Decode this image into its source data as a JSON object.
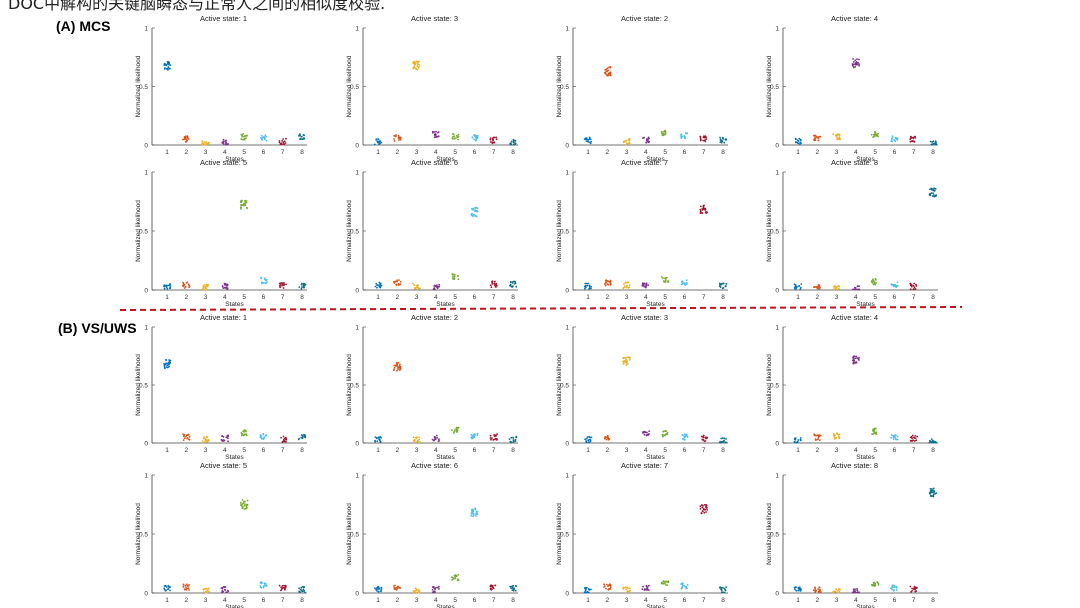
{
  "caption": "DOC中解构的关键脑瞬态与正常人之间的相似度校验.",
  "divider_color": "#c0141c",
  "state_colors": [
    "#0072bd",
    "#d95319",
    "#edb120",
    "#7e2f8e",
    "#77ac30",
    "#4dbeee",
    "#a2142f",
    "#0b6e8f"
  ],
  "chart_data": [
    {
      "panel": "(A) MCS",
      "type": "scatter",
      "xlabel": "States",
      "ylabel": "Normalized likelihood",
      "x_ticks": [
        "1",
        "2",
        "3",
        "4",
        "5",
        "6",
        "7",
        "8"
      ],
      "y_ticks": [
        "0",
        "0.5",
        "1"
      ],
      "ylim": [
        0,
        1
      ],
      "subplots": [
        {
          "title": "Active state: 1",
          "values": [
            0.68,
            0.05,
            0.02,
            0.02,
            0.07,
            0.06,
            0.03,
            0.07
          ]
        },
        {
          "title": "Active state: 3",
          "values": [
            0.03,
            0.06,
            0.68,
            0.09,
            0.07,
            0.06,
            0.04,
            0.02
          ]
        },
        {
          "title": "Active state: 2",
          "values": [
            0.04,
            0.63,
            0.03,
            0.04,
            0.1,
            0.08,
            0.05,
            0.04
          ]
        },
        {
          "title": "Active state: 4",
          "values": [
            0.03,
            0.06,
            0.07,
            0.7,
            0.09,
            0.05,
            0.05,
            0.01
          ]
        },
        {
          "title": "Active state: 5",
          "values": [
            0.03,
            0.04,
            0.02,
            0.03,
            0.72,
            0.08,
            0.04,
            0.03
          ]
        },
        {
          "title": "Active state: 6",
          "values": [
            0.04,
            0.06,
            0.03,
            0.02,
            0.11,
            0.66,
            0.05,
            0.05
          ]
        },
        {
          "title": "Active state: 7",
          "values": [
            0.03,
            0.06,
            0.04,
            0.04,
            0.09,
            0.06,
            0.68,
            0.04
          ]
        },
        {
          "title": "Active state: 8",
          "values": [
            0.03,
            0.03,
            0.01,
            0.01,
            0.07,
            0.05,
            0.03,
            0.83
          ]
        }
      ]
    },
    {
      "panel": "(B) VS/UWS",
      "type": "scatter",
      "xlabel": "States",
      "ylabel": "Normalized likelihood",
      "x_ticks": [
        "1",
        "2",
        "3",
        "4",
        "5",
        "6",
        "7",
        "8"
      ],
      "y_ticks": [
        "0",
        "0.5",
        "1"
      ],
      "ylim": [
        0,
        1
      ],
      "subplots": [
        {
          "title": "Active state: 1",
          "values": [
            0.68,
            0.05,
            0.03,
            0.04,
            0.09,
            0.06,
            0.03,
            0.05
          ]
        },
        {
          "title": "Active state: 2",
          "values": [
            0.03,
            0.66,
            0.03,
            0.04,
            0.11,
            0.06,
            0.05,
            0.03
          ]
        },
        {
          "title": "Active state: 3",
          "values": [
            0.03,
            0.05,
            0.7,
            0.09,
            0.08,
            0.05,
            0.04,
            0.02
          ]
        },
        {
          "title": "Active state: 4",
          "values": [
            0.02,
            0.05,
            0.06,
            0.72,
            0.1,
            0.05,
            0.04,
            0.01
          ]
        },
        {
          "title": "Active state: 5",
          "values": [
            0.04,
            0.05,
            0.02,
            0.03,
            0.75,
            0.07,
            0.04,
            0.03
          ]
        },
        {
          "title": "Active state: 6",
          "values": [
            0.03,
            0.05,
            0.02,
            0.03,
            0.13,
            0.68,
            0.05,
            0.04
          ]
        },
        {
          "title": "Active state: 7",
          "values": [
            0.02,
            0.05,
            0.03,
            0.04,
            0.09,
            0.06,
            0.71,
            0.03
          ]
        },
        {
          "title": "Active state: 8",
          "values": [
            0.03,
            0.03,
            0.01,
            0.01,
            0.07,
            0.04,
            0.03,
            0.85
          ]
        }
      ]
    }
  ]
}
